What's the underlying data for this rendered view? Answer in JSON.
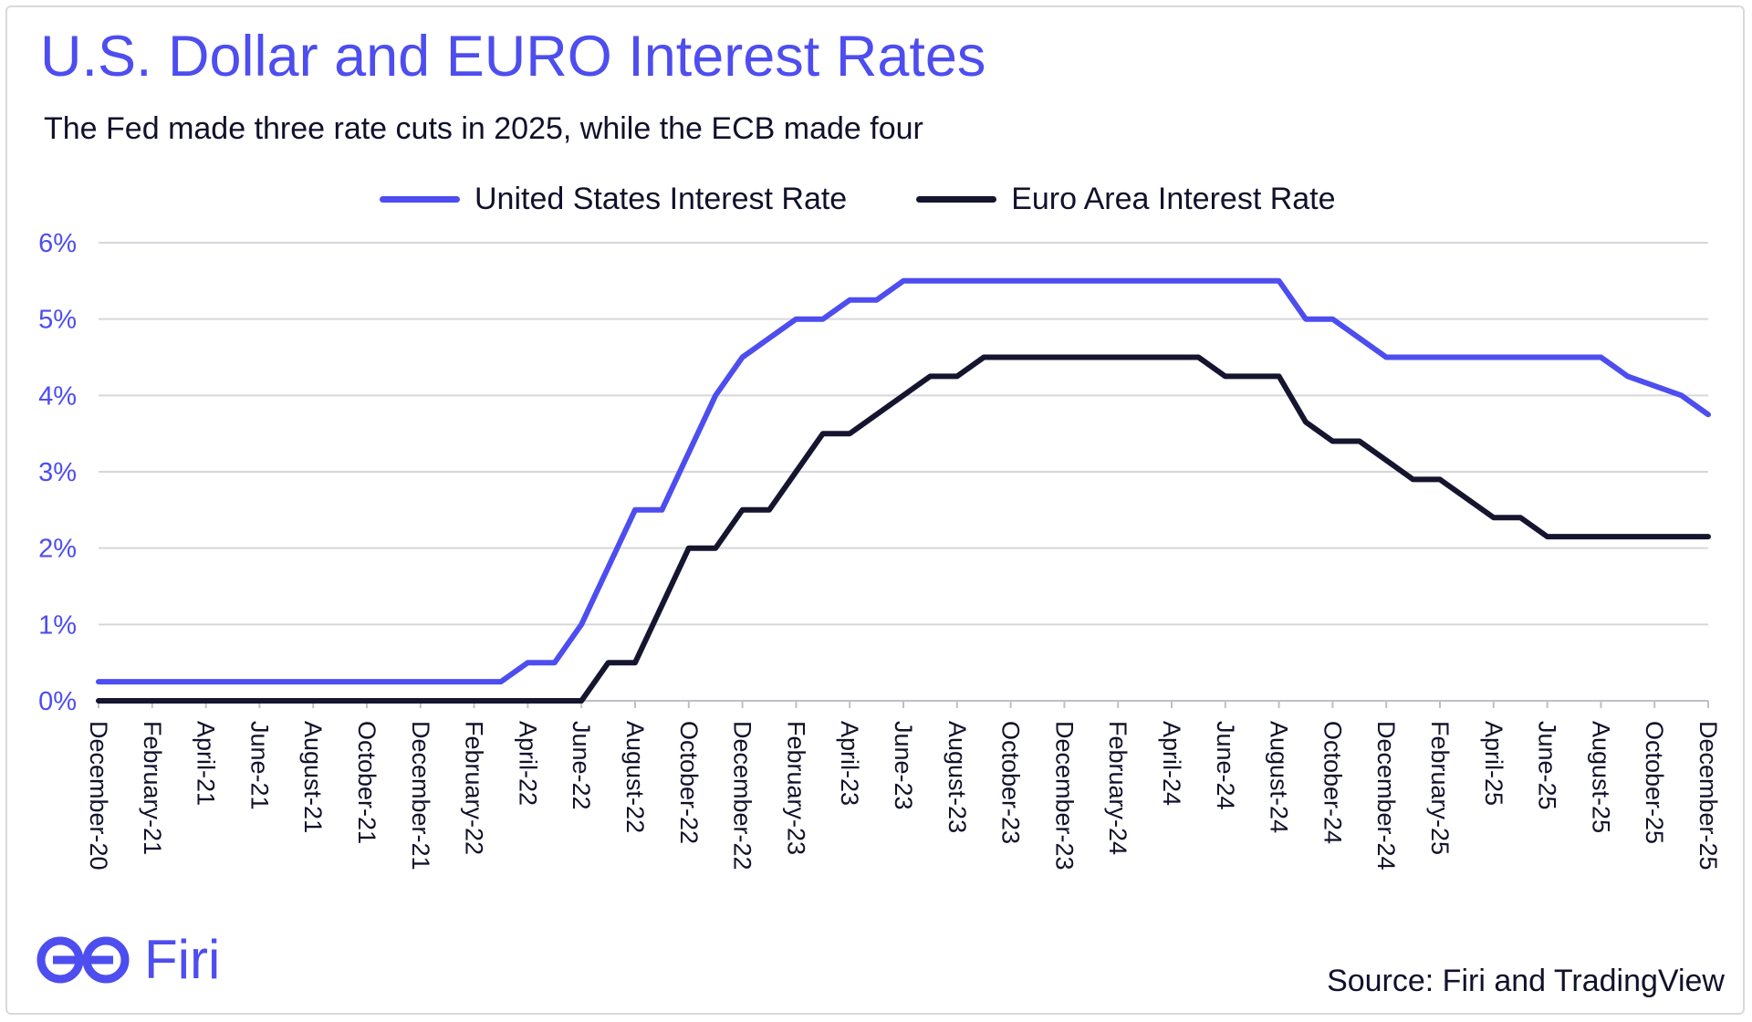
{
  "header": {
    "title": "U.S. Dollar and EURO Interest Rates",
    "subtitle": "The Fed made three rate cuts in 2025, while the ECB made four"
  },
  "legend": {
    "us_label": "United States Interest Rate",
    "eu_label": "Euro Area Interest Rate"
  },
  "colors": {
    "us": "#4d4df0",
    "eu": "#151530",
    "grid": "#d6d6dc",
    "axis_text": "#4d4df0",
    "tick_text": "#11112b"
  },
  "footer": {
    "brand": "Firi",
    "source": "Source: Firi and TradingView"
  },
  "chart_data": {
    "type": "line",
    "title": "U.S. Dollar and EURO Interest Rates",
    "subtitle": "The Fed made three rate cuts in 2025, while the ECB made four",
    "xlabel": "",
    "ylabel": "",
    "ylim": [
      0,
      6
    ],
    "yticks": [
      "0%",
      "1%",
      "2%",
      "3%",
      "4%",
      "5%",
      "6%"
    ],
    "grid": true,
    "legend_position": "top",
    "x_labels": [
      "December-20",
      "February-21",
      "April-21",
      "June-21",
      "August-21",
      "October-21",
      "December-21",
      "February-22",
      "April-22",
      "June-22",
      "August-22",
      "October-22",
      "December-22",
      "February-23",
      "April-23",
      "June-23",
      "August-23",
      "October-23",
      "December-23",
      "February-24",
      "April-24",
      "June-24",
      "August-24",
      "October-24",
      "December-24",
      "February-25",
      "April-25",
      "June-25",
      "August-25",
      "October-25",
      "December-25"
    ],
    "x_months": 60,
    "series": [
      {
        "name": "United States Interest Rate",
        "points": [
          [
            0,
            0.25
          ],
          [
            15,
            0.25
          ],
          [
            16,
            0.5
          ],
          [
            17,
            0.5
          ],
          [
            18,
            1.0
          ],
          [
            20,
            2.5
          ],
          [
            21,
            2.5
          ],
          [
            23,
            4.0
          ],
          [
            24,
            4.5
          ],
          [
            25,
            4.75
          ],
          [
            26,
            5.0
          ],
          [
            27,
            5.0
          ],
          [
            28,
            5.25
          ],
          [
            29,
            5.25
          ],
          [
            30,
            5.5
          ],
          [
            44,
            5.5
          ],
          [
            45,
            5.0
          ],
          [
            46,
            5.0
          ],
          [
            48,
            4.5
          ],
          [
            56,
            4.5
          ],
          [
            57,
            4.25
          ],
          [
            59,
            4.0
          ],
          [
            60,
            3.75
          ]
        ]
      },
      {
        "name": "Euro Area Interest Rate",
        "points": [
          [
            0,
            0
          ],
          [
            18,
            0
          ],
          [
            19,
            0.5
          ],
          [
            20,
            0.5
          ],
          [
            22,
            2.0
          ],
          [
            23,
            2.0
          ],
          [
            24,
            2.5
          ],
          [
            25,
            2.5
          ],
          [
            26,
            3.0
          ],
          [
            27,
            3.5
          ],
          [
            28,
            3.5
          ],
          [
            30,
            4.0
          ],
          [
            31,
            4.25
          ],
          [
            32,
            4.25
          ],
          [
            33,
            4.5
          ],
          [
            41,
            4.5
          ],
          [
            42,
            4.25
          ],
          [
            44,
            4.25
          ],
          [
            45,
            3.65
          ],
          [
            46,
            3.4
          ],
          [
            47,
            3.4
          ],
          [
            48,
            3.15
          ],
          [
            49,
            2.9
          ],
          [
            50,
            2.9
          ],
          [
            51,
            2.65
          ],
          [
            52,
            2.4
          ],
          [
            53,
            2.4
          ],
          [
            54,
            2.15
          ],
          [
            60,
            2.15
          ]
        ]
      }
    ]
  }
}
